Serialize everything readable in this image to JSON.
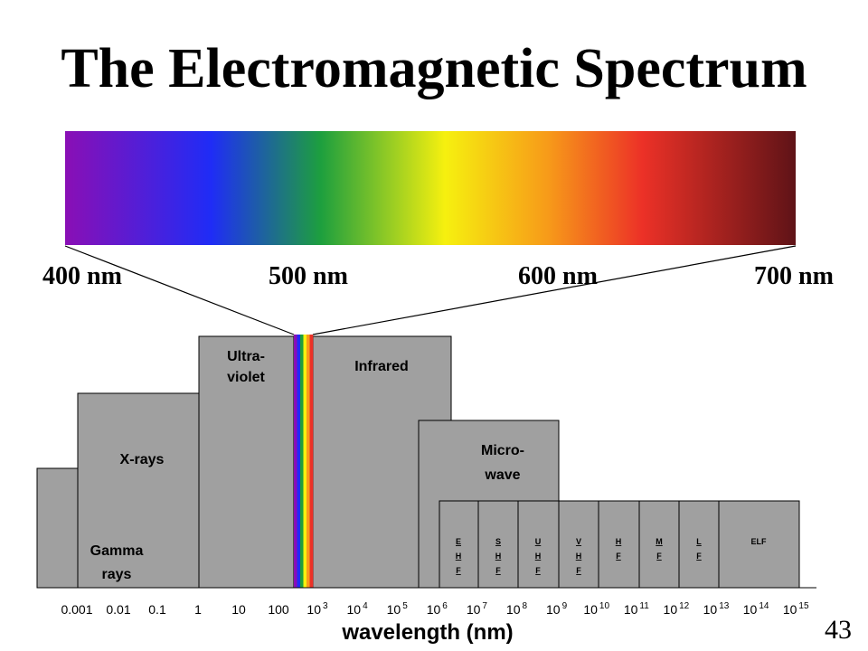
{
  "slide": {
    "title": "The Electromagnetic Spectrum",
    "page_number": "43"
  },
  "visible_spectrum": {
    "labels": [
      "400 nm",
      "500 nm",
      "600 nm",
      "700 nm"
    ],
    "gradient_colors": [
      "#8a0fb5",
      "#1f2cf6",
      "#1d9f3e",
      "#f6f00f",
      "#f79b19",
      "#ec3127",
      "#5f1317"
    ]
  },
  "regions": {
    "gamma": {
      "line1": "Gamma",
      "line2": "rays"
    },
    "xrays": {
      "label": "X-rays"
    },
    "ultraviolet": {
      "line1": "Ultra-",
      "line2": "violet"
    },
    "infrared": {
      "label": "Infrared"
    },
    "microwave": {
      "line1": "Micro-",
      "line2": "wave"
    },
    "radio_bands": [
      {
        "letters": [
          "E",
          "H",
          "F"
        ]
      },
      {
        "letters": [
          "S",
          "H",
          "F"
        ]
      },
      {
        "letters": [
          "U",
          "H",
          "F"
        ]
      },
      {
        "letters": [
          "V",
          "H",
          "F"
        ]
      },
      {
        "letters": [
          "H",
          "F"
        ]
      },
      {
        "letters": [
          "M",
          "F"
        ]
      },
      {
        "letters": [
          "L",
          "F"
        ]
      },
      {
        "letters": [
          "ELF"
        ]
      }
    ]
  },
  "axis": {
    "label": "wavelength (nm)",
    "plain_ticks": [
      "0.001",
      "0.01",
      "0.1",
      "1",
      "10",
      "100"
    ],
    "power_base": "10",
    "exponents": [
      "3",
      "4",
      "5",
      "6",
      "7",
      "8",
      "9",
      "10",
      "11",
      "12",
      "13",
      "14",
      "15"
    ]
  },
  "colors": {
    "region_fill": "#a0a0a0",
    "region_stroke": "#000000",
    "visible_strip": [
      "#8a0fb5",
      "#1f2cf6",
      "#1d9f3e",
      "#f6f00f",
      "#f79b19",
      "#ec3127"
    ]
  }
}
